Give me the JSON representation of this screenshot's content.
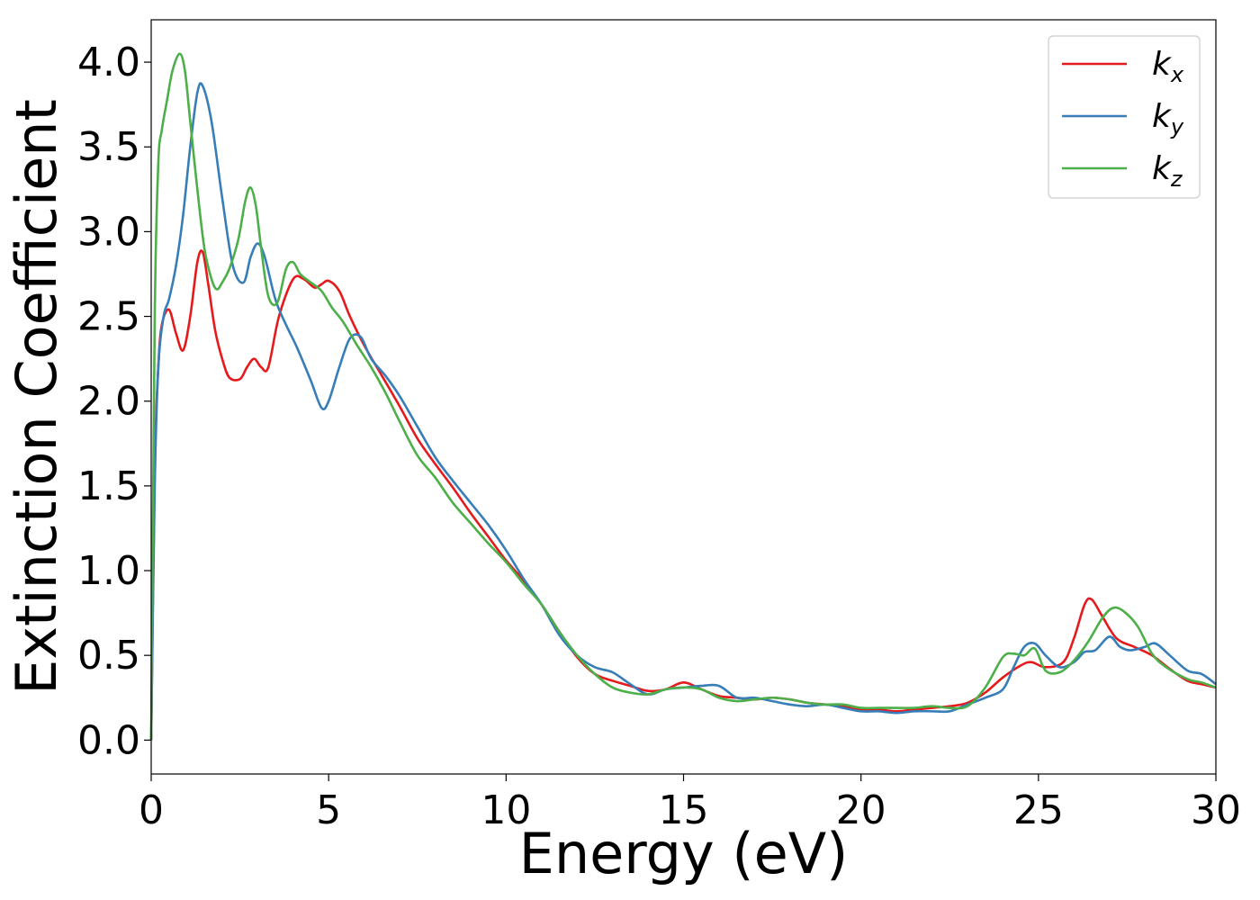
{
  "chart_data": {
    "type": "line",
    "xlabel": "Energy (eV)",
    "ylabel": "Extinction Coefficient",
    "xlim": [
      0,
      30
    ],
    "ylim": [
      -0.2,
      4.25
    ],
    "xticks": [
      0,
      5,
      10,
      15,
      20,
      25,
      30
    ],
    "xtick_labels": [
      "0",
      "5",
      "10",
      "15",
      "20",
      "25",
      "30"
    ],
    "yticks": [
      0.0,
      0.5,
      1.0,
      1.5,
      2.0,
      2.5,
      3.0,
      3.5,
      4.0
    ],
    "ytick_labels": [
      "0.0",
      "0.5",
      "1.0",
      "1.5",
      "2.0",
      "2.5",
      "3.0",
      "3.5",
      "4.0"
    ],
    "grid": false,
    "legend_position": "top-right",
    "series": [
      {
        "name": "k_x",
        "label_main": "k",
        "label_sub": "x",
        "color": "#e41a1c",
        "x": [
          0,
          0.1,
          0.2,
          0.3,
          0.5,
          0.7,
          0.9,
          1.1,
          1.3,
          1.45,
          1.6,
          1.8,
          2.0,
          2.2,
          2.5,
          2.7,
          2.9,
          3.1,
          3.3,
          3.6,
          4.0,
          4.3,
          4.6,
          4.8,
          5.0,
          5.3,
          5.6,
          6.0,
          6.5,
          7.0,
          7.5,
          8.0,
          8.5,
          9.0,
          9.5,
          10.0,
          10.5,
          11.0,
          11.5,
          12.0,
          12.5,
          13.0,
          13.5,
          14.0,
          14.5,
          15.0,
          15.5,
          16.0,
          16.5,
          17.0,
          17.5,
          18.0,
          18.5,
          19.0,
          19.5,
          20.0,
          20.5,
          21.0,
          21.5,
          22.0,
          22.5,
          23.0,
          23.5,
          24.0,
          24.5,
          24.8,
          25.2,
          25.7,
          26.0,
          26.3,
          26.5,
          26.8,
          27.2,
          27.7,
          28.2,
          28.7,
          29.2,
          29.6,
          30.0
        ],
        "y": [
          0.0,
          1.6,
          2.2,
          2.45,
          2.54,
          2.4,
          2.3,
          2.5,
          2.82,
          2.88,
          2.7,
          2.42,
          2.25,
          2.14,
          2.13,
          2.2,
          2.25,
          2.2,
          2.2,
          2.5,
          2.72,
          2.72,
          2.67,
          2.69,
          2.71,
          2.65,
          2.5,
          2.33,
          2.15,
          1.97,
          1.78,
          1.63,
          1.49,
          1.34,
          1.2,
          1.06,
          0.94,
          0.8,
          0.64,
          0.49,
          0.39,
          0.35,
          0.32,
          0.29,
          0.3,
          0.34,
          0.3,
          0.26,
          0.25,
          0.24,
          0.25,
          0.24,
          0.22,
          0.21,
          0.2,
          0.18,
          0.18,
          0.17,
          0.18,
          0.19,
          0.2,
          0.22,
          0.28,
          0.37,
          0.44,
          0.46,
          0.43,
          0.46,
          0.6,
          0.8,
          0.83,
          0.73,
          0.6,
          0.55,
          0.5,
          0.42,
          0.35,
          0.33,
          0.31
        ]
      },
      {
        "name": "k_y",
        "label_main": "k",
        "label_sub": "y",
        "color": "#377eb8",
        "x": [
          0,
          0.1,
          0.2,
          0.35,
          0.5,
          0.7,
          0.9,
          1.1,
          1.3,
          1.45,
          1.7,
          2.0,
          2.3,
          2.6,
          2.8,
          3.0,
          3.2,
          3.5,
          3.8,
          4.1,
          4.5,
          4.8,
          5.0,
          5.3,
          5.6,
          5.9,
          6.2,
          6.6,
          7.0,
          7.5,
          8.0,
          8.5,
          9.0,
          9.5,
          10.0,
          10.5,
          11.0,
          11.5,
          12.0,
          12.5,
          13.0,
          13.5,
          14.0,
          14.5,
          15.0,
          15.5,
          16.0,
          16.5,
          17.0,
          17.5,
          18.0,
          18.5,
          19.0,
          19.5,
          20.0,
          20.5,
          21.0,
          21.5,
          22.0,
          22.5,
          23.0,
          23.5,
          24.0,
          24.3,
          24.6,
          24.9,
          25.2,
          25.6,
          26.0,
          26.3,
          26.6,
          27.0,
          27.3,
          27.6,
          28.0,
          28.3,
          28.7,
          29.2,
          29.6,
          30.0
        ],
        "y": [
          0.0,
          1.5,
          2.2,
          2.5,
          2.6,
          2.8,
          3.1,
          3.5,
          3.82,
          3.86,
          3.65,
          3.2,
          2.8,
          2.7,
          2.85,
          2.93,
          2.85,
          2.6,
          2.45,
          2.32,
          2.12,
          1.96,
          2.0,
          2.2,
          2.37,
          2.38,
          2.25,
          2.15,
          2.03,
          1.85,
          1.67,
          1.53,
          1.4,
          1.27,
          1.12,
          0.95,
          0.8,
          0.62,
          0.5,
          0.43,
          0.4,
          0.33,
          0.27,
          0.3,
          0.31,
          0.32,
          0.32,
          0.25,
          0.25,
          0.23,
          0.21,
          0.2,
          0.21,
          0.19,
          0.17,
          0.17,
          0.16,
          0.17,
          0.17,
          0.17,
          0.21,
          0.25,
          0.3,
          0.43,
          0.55,
          0.57,
          0.5,
          0.43,
          0.46,
          0.52,
          0.53,
          0.61,
          0.55,
          0.53,
          0.55,
          0.57,
          0.5,
          0.41,
          0.39,
          0.33
        ]
      },
      {
        "name": "k_z",
        "label_main": "k",
        "label_sub": "z",
        "color": "#4daf4a",
        "x": [
          0,
          0.1,
          0.2,
          0.3,
          0.45,
          0.6,
          0.8,
          0.95,
          1.1,
          1.3,
          1.5,
          1.7,
          1.85,
          2.0,
          2.2,
          2.45,
          2.65,
          2.8,
          2.95,
          3.1,
          3.3,
          3.55,
          3.8,
          4.0,
          4.2,
          4.5,
          4.8,
          5.1,
          5.4,
          5.8,
          6.2,
          6.6,
          7.0,
          7.5,
          8.0,
          8.5,
          9.0,
          9.5,
          10.0,
          10.5,
          11.0,
          11.5,
          12.0,
          12.5,
          13.0,
          13.5,
          14.0,
          14.5,
          15.0,
          15.5,
          16.0,
          16.5,
          17.0,
          17.5,
          18.0,
          18.5,
          19.0,
          19.5,
          20.0,
          20.5,
          21.0,
          21.5,
          22.0,
          22.5,
          23.0,
          23.5,
          24.0,
          24.3,
          24.6,
          24.9,
          25.2,
          25.6,
          26.0,
          26.4,
          26.8,
          27.1,
          27.4,
          27.8,
          28.2,
          28.6,
          29.2,
          29.6,
          30.0
        ],
        "y": [
          0.0,
          2.5,
          3.4,
          3.6,
          3.78,
          3.95,
          4.05,
          3.95,
          3.65,
          3.25,
          2.9,
          2.72,
          2.66,
          2.7,
          2.78,
          2.95,
          3.18,
          3.26,
          3.15,
          2.9,
          2.62,
          2.58,
          2.78,
          2.82,
          2.75,
          2.7,
          2.65,
          2.55,
          2.47,
          2.33,
          2.2,
          2.05,
          1.88,
          1.68,
          1.55,
          1.4,
          1.28,
          1.16,
          1.05,
          0.92,
          0.8,
          0.64,
          0.5,
          0.39,
          0.31,
          0.28,
          0.27,
          0.3,
          0.31,
          0.3,
          0.25,
          0.23,
          0.24,
          0.25,
          0.24,
          0.22,
          0.21,
          0.21,
          0.19,
          0.19,
          0.19,
          0.19,
          0.2,
          0.19,
          0.2,
          0.31,
          0.49,
          0.51,
          0.5,
          0.54,
          0.41,
          0.4,
          0.47,
          0.58,
          0.72,
          0.78,
          0.76,
          0.67,
          0.51,
          0.43,
          0.36,
          0.34,
          0.31
        ]
      }
    ]
  }
}
